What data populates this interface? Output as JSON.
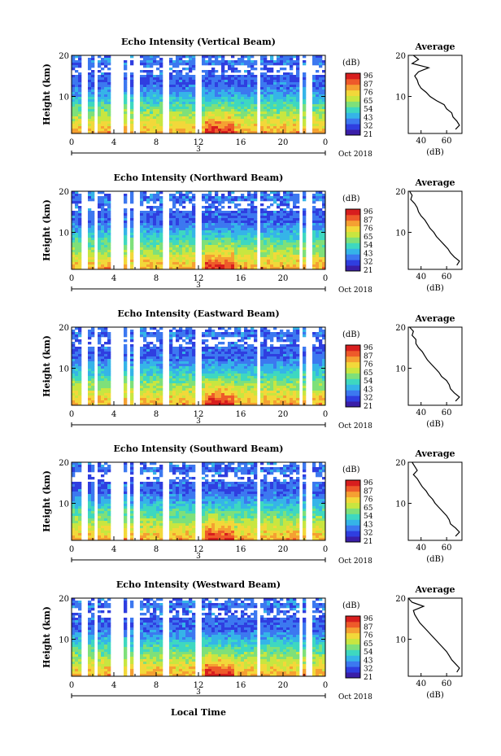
{
  "figure": {
    "xlabel": "Local Time",
    "date_label": "Oct 2018",
    "day_label": "3",
    "colorbar_unit": "(dB)",
    "colorbar_ticks": [
      "96",
      "87",
      "76",
      "65",
      "54",
      "43",
      "32",
      "21"
    ],
    "colors": [
      "#3a1ea8",
      "#2f3ee0",
      "#3c78f0",
      "#35b4e8",
      "#3ed8c0",
      "#7ee07a",
      "#c8e640",
      "#f2d83a",
      "#f5a032",
      "#ee5a2a",
      "#d81e1e"
    ]
  },
  "chart_data": [
    {
      "type": "heatmap",
      "title": "Echo Intensity (Vertical Beam)",
      "ylabel": "Height (km)",
      "xticks": [
        "0",
        "4",
        "8",
        "12",
        "16",
        "20",
        "0"
      ],
      "yticks": [
        "20",
        "10"
      ],
      "xlim": [
        0,
        24
      ],
      "ylim": [
        1,
        20
      ],
      "gaps": [
        1.2,
        2.3,
        4.0,
        4.6,
        5.4,
        6.2,
        8.9,
        12.0,
        17.7,
        21.7,
        22.5
      ],
      "profile": {
        "title": "Average",
        "xlabel": "(dB)",
        "xticks": [
          "40",
          "60"
        ],
        "xlim": [
          30,
          72
        ],
        "ylim": [
          1,
          20
        ],
        "heights": [
          20,
          19,
          18,
          17,
          16,
          15,
          14,
          13,
          12,
          11,
          10,
          9,
          8,
          7,
          6,
          5,
          4,
          3,
          2
        ],
        "values": [
          34,
          38,
          33,
          46,
          38,
          35,
          37,
          38,
          40,
          44,
          47,
          52,
          58,
          60,
          64,
          65,
          68,
          70,
          67
        ]
      }
    },
    {
      "type": "heatmap",
      "title": "Echo Intensity (Northward Beam)",
      "ylabel": "Height (km)",
      "xticks": [
        "0",
        "4",
        "8",
        "12",
        "16",
        "20",
        "0"
      ],
      "yticks": [
        "20",
        "10"
      ],
      "xlim": [
        0,
        24
      ],
      "ylim": [
        1,
        20
      ],
      "gaps": [
        1.2,
        2.3,
        4.0,
        4.6,
        5.4,
        6.2,
        8.9,
        12.0,
        17.7,
        21.7,
        22.5
      ],
      "profile": {
        "title": "Average",
        "xlabel": "(dB)",
        "xticks": [
          "40",
          "60"
        ],
        "xlim": [
          30,
          72
        ],
        "ylim": [
          1,
          20
        ],
        "heights": [
          20,
          19,
          18,
          17,
          16,
          15,
          14,
          13,
          12,
          11,
          10,
          9,
          8,
          7,
          6,
          5,
          4,
          3,
          2
        ],
        "values": [
          31,
          33,
          32,
          35,
          37,
          38,
          40,
          43,
          45,
          47,
          50,
          52,
          55,
          58,
          61,
          63,
          66,
          70,
          68
        ]
      }
    },
    {
      "type": "heatmap",
      "title": "Echo Intensity (Eastward Beam)",
      "ylabel": "Height (km)",
      "xticks": [
        "0",
        "4",
        "8",
        "12",
        "16",
        "20",
        "0"
      ],
      "yticks": [
        "20",
        "10"
      ],
      "xlim": [
        0,
        24
      ],
      "ylim": [
        1,
        20
      ],
      "gaps": [
        1.2,
        2.3,
        4.0,
        4.6,
        5.4,
        6.2,
        8.9,
        12.0,
        17.7,
        21.7,
        22.5
      ],
      "profile": {
        "title": "Average",
        "xlabel": "(dB)",
        "xticks": [
          "40",
          "60"
        ],
        "xlim": [
          30,
          72
        ],
        "ylim": [
          1,
          20
        ],
        "heights": [
          20,
          19,
          18,
          17,
          16,
          15,
          14,
          13,
          12,
          11,
          10,
          9,
          8,
          7,
          6,
          5,
          4,
          3,
          2
        ],
        "values": [
          31,
          34,
          33,
          36,
          36,
          38,
          41,
          43,
          45,
          48,
          51,
          54,
          56,
          60,
          62,
          63,
          66,
          70,
          67
        ]
      }
    },
    {
      "type": "heatmap",
      "title": "Echo Intensity (Southward Beam)",
      "ylabel": "Height (km)",
      "xticks": [
        "0",
        "4",
        "8",
        "12",
        "16",
        "20",
        "0"
      ],
      "yticks": [
        "20",
        "10"
      ],
      "xlim": [
        0,
        24
      ],
      "ylim": [
        1,
        20
      ],
      "gaps": [
        1.2,
        2.3,
        4.0,
        4.6,
        5.4,
        6.2,
        8.9,
        12.0,
        17.7,
        21.7,
        22.5
      ],
      "profile": {
        "title": "Average",
        "xlabel": "(dB)",
        "xticks": [
          "40",
          "60"
        ],
        "xlim": [
          30,
          72
        ],
        "ylim": [
          1,
          20
        ],
        "heights": [
          20,
          19,
          18,
          17,
          16,
          15,
          14,
          13,
          12,
          11,
          10,
          9,
          8,
          7,
          6,
          5,
          4,
          3,
          2
        ],
        "values": [
          33,
          35,
          37,
          34,
          37,
          39,
          41,
          44,
          46,
          49,
          51,
          54,
          57,
          60,
          62,
          63,
          67,
          70,
          67
        ]
      }
    },
    {
      "type": "heatmap",
      "title": "Echo Intensity (Westward Beam)",
      "ylabel": "Height (km)",
      "xticks": [
        "0",
        "4",
        "8",
        "12",
        "16",
        "20",
        "0"
      ],
      "yticks": [
        "20",
        "10"
      ],
      "xlim": [
        0,
        24
      ],
      "ylim": [
        1,
        20
      ],
      "gaps": [
        1.2,
        2.3,
        4.0,
        4.6,
        5.4,
        6.2,
        8.9,
        12.0,
        17.7,
        21.7,
        22.5
      ],
      "profile": {
        "title": "Average",
        "xlabel": "(dB)",
        "xticks": [
          "40",
          "60"
        ],
        "xlim": [
          30,
          72
        ],
        "ylim": [
          1,
          20
        ],
        "heights": [
          20,
          19,
          18,
          17,
          16,
          15,
          14,
          13,
          12,
          11,
          10,
          9,
          8,
          7,
          6,
          5,
          4,
          3,
          2
        ],
        "values": [
          30,
          33,
          42,
          34,
          35,
          37,
          39,
          42,
          45,
          48,
          51,
          54,
          57,
          60,
          62,
          64,
          67,
          70,
          68
        ]
      }
    }
  ]
}
